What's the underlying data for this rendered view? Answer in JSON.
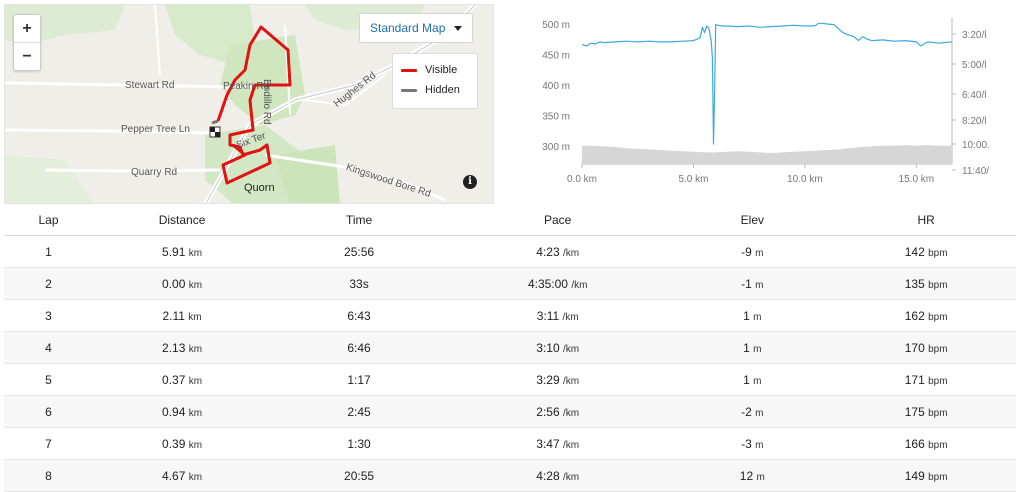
{
  "map": {
    "zoom_in": "+",
    "zoom_out": "−",
    "map_type": "Standard Map",
    "legend": {
      "visible": "Visible",
      "hidden": "Hidden",
      "visible_color": "#e31212",
      "hidden_color": "#777777"
    },
    "labels": {
      "stewart_rd": "Stewart Rd",
      "peakin_rd": "Peakin Rd",
      "endillo_rd": "Endillo Rd",
      "hughes_rd": "Hughes Rd",
      "pepper_tree_ln": "Pepper Tree Ln",
      "six_ter": "Six Ter",
      "quarry_rd": "Quarry Rd",
      "quorn": "Quorn",
      "kingswood_bore_rd": "Kingswood Bore Rd"
    },
    "info_icon": "i"
  },
  "chart_data": {
    "type": "area",
    "x_ticks": [
      "0.0 km",
      "5.0 km",
      "10.0 km",
      "15.0 km"
    ],
    "y_left_ticks": [
      "500 m",
      "450 m",
      "400 m",
      "350 m",
      "300 m"
    ],
    "y_right_ticks": [
      "3:20/l",
      "5:00/l",
      "6:40/l",
      "8:20/l",
      "10:00.",
      "11:40/"
    ],
    "xlim": [
      0,
      16.6
    ],
    "ylim_elevation_m": [
      270,
      510
    ],
    "series": [
      {
        "kind": "pace",
        "color": "#3da9e2",
        "x": [
          0.0,
          0.2,
          0.4,
          0.6,
          0.8,
          1.0,
          1.5,
          2.0,
          2.5,
          3.0,
          3.5,
          4.0,
          4.5,
          5.0,
          5.3,
          5.4,
          5.5,
          5.6,
          5.7,
          5.8,
          5.85,
          5.9,
          5.95,
          6.0,
          6.1,
          6.3,
          6.5,
          7.0,
          7.5,
          8.0,
          8.5,
          9.0,
          9.5,
          10.0,
          10.3,
          10.5,
          10.6,
          10.8,
          11.0,
          11.3,
          11.5,
          11.7,
          12.0,
          12.2,
          12.4,
          12.6,
          12.8,
          13.0,
          13.5,
          14.0,
          14.5,
          15.0,
          15.2,
          15.5,
          16.0,
          16.6
        ],
        "y": [
          4.5,
          4.6,
          4.4,
          4.45,
          4.3,
          4.35,
          4.3,
          4.25,
          4.3,
          4.25,
          4.3,
          4.3,
          4.25,
          4.2,
          4.0,
          3.2,
          3.6,
          3.1,
          3.3,
          4.3,
          5.5,
          12.0,
          8.0,
          3.0,
          3.05,
          3.1,
          3.1,
          3.15,
          3.1,
          3.2,
          3.15,
          3.1,
          3.05,
          3.1,
          3.1,
          3.05,
          2.9,
          2.9,
          2.95,
          3.0,
          3.3,
          3.6,
          3.8,
          3.9,
          4.2,
          3.9,
          4.1,
          4.2,
          4.15,
          4.25,
          4.2,
          4.3,
          4.6,
          4.3,
          4.4,
          4.3
        ]
      },
      {
        "kind": "elevation",
        "color": "#d6d6d6",
        "x": [
          0.0,
          0.5,
          1.0,
          1.5,
          2.0,
          2.5,
          3.0,
          3.5,
          4.0,
          4.5,
          5.0,
          5.5,
          6.0,
          6.5,
          7.0,
          7.5,
          8.0,
          8.5,
          9.0,
          9.5,
          10.0,
          10.5,
          11.0,
          11.5,
          12.0,
          12.5,
          13.0,
          13.5,
          14.0,
          14.5,
          15.0,
          15.5,
          16.0,
          16.6
        ],
        "y": [
          300,
          300,
          299,
          298,
          296,
          295,
          294,
          293,
          292,
          291,
          290,
          289,
          289,
          290,
          291,
          290,
          289,
          288,
          289,
          290,
          291,
          292,
          293,
          294,
          296,
          298,
          299,
          300,
          300,
          301,
          300,
          301,
          300,
          300
        ]
      }
    ]
  },
  "table": {
    "headers": [
      "Lap",
      "Distance",
      "Time",
      "Pace",
      "Elev",
      "HR"
    ],
    "rows": [
      {
        "lap": "1",
        "dist": "5.91",
        "dist_u": "km",
        "time": "25:56",
        "pace": "4:23",
        "pace_u": "/km",
        "elev": "-9",
        "elev_u": "m",
        "hr": "142",
        "hr_u": "bpm"
      },
      {
        "lap": "2",
        "dist": "0.00",
        "dist_u": "km",
        "time": "33s",
        "pace": "4:35:00",
        "pace_u": "/km",
        "elev": "-1",
        "elev_u": "m",
        "hr": "135",
        "hr_u": "bpm"
      },
      {
        "lap": "3",
        "dist": "2.11",
        "dist_u": "km",
        "time": "6:43",
        "pace": "3:11",
        "pace_u": "/km",
        "elev": "1",
        "elev_u": "m",
        "hr": "162",
        "hr_u": "bpm"
      },
      {
        "lap": "4",
        "dist": "2.13",
        "dist_u": "km",
        "time": "6:46",
        "pace": "3:10",
        "pace_u": "/km",
        "elev": "1",
        "elev_u": "m",
        "hr": "170",
        "hr_u": "bpm"
      },
      {
        "lap": "5",
        "dist": "0.37",
        "dist_u": "km",
        "time": "1:17",
        "pace": "3:29",
        "pace_u": "/km",
        "elev": "1",
        "elev_u": "m",
        "hr": "171",
        "hr_u": "bpm"
      },
      {
        "lap": "6",
        "dist": "0.94",
        "dist_u": "km",
        "time": "2:45",
        "pace": "2:56",
        "pace_u": "/km",
        "elev": "-2",
        "elev_u": "m",
        "hr": "175",
        "hr_u": "bpm"
      },
      {
        "lap": "7",
        "dist": "0.39",
        "dist_u": "km",
        "time": "1:30",
        "pace": "3:47",
        "pace_u": "/km",
        "elev": "-3",
        "elev_u": "m",
        "hr": "166",
        "hr_u": "bpm"
      },
      {
        "lap": "8",
        "dist": "4.67",
        "dist_u": "km",
        "time": "20:55",
        "pace": "4:28",
        "pace_u": "/km",
        "elev": "12",
        "elev_u": "m",
        "hr": "149",
        "hr_u": "bpm"
      }
    ]
  }
}
